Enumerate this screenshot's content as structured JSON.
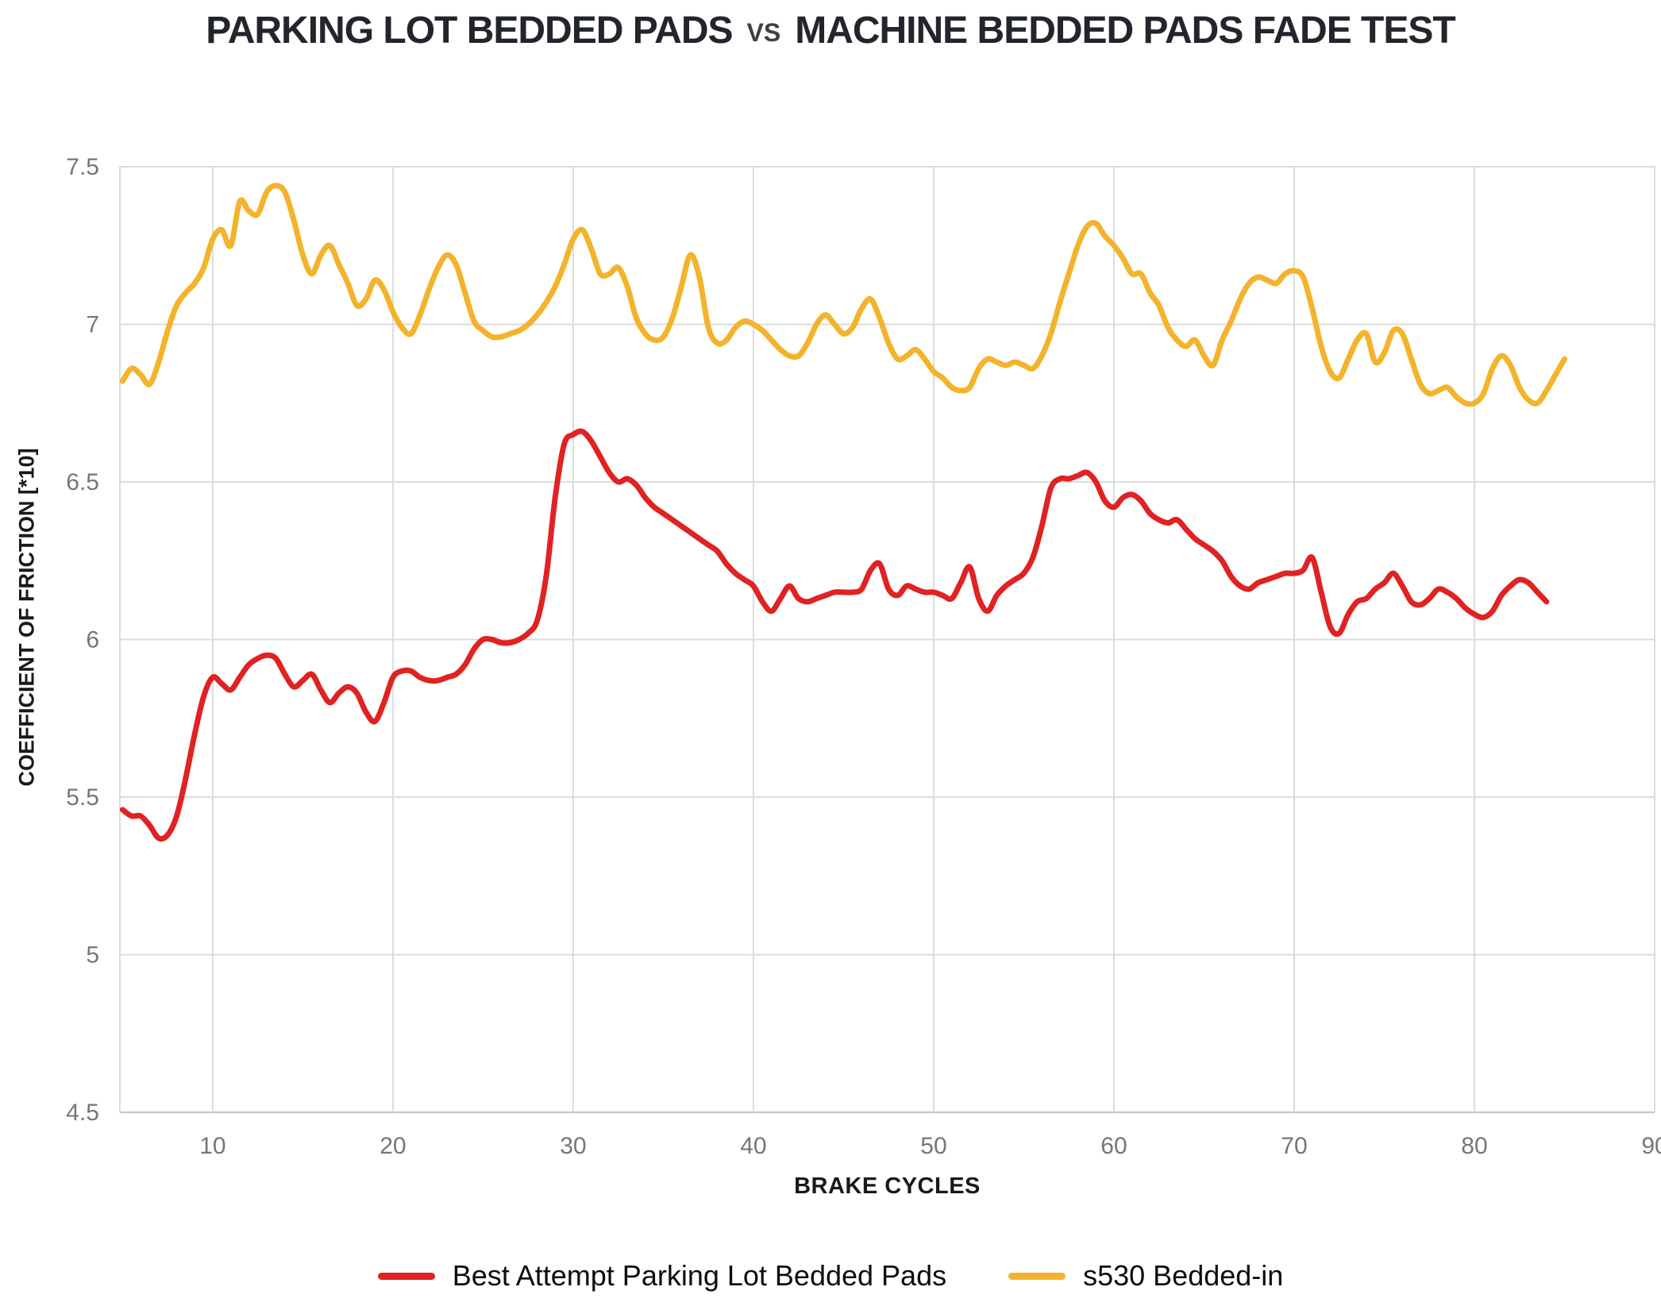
{
  "title": {
    "part1": "PARKING LOT BEDDED PADS",
    "separator": "VS",
    "part2": "MACHINE BEDDED PADS FADE TEST"
  },
  "colors": {
    "parking_lot_line": "#e02222",
    "s530_line": "#f3b32b",
    "gridline": "#dcdcdc",
    "axis_line": "#c9c9c9",
    "tick_text": "#767676",
    "title_text": "#22262c",
    "axis_title_text": "#17191d",
    "legend_text": "#0d0d0d"
  },
  "chart_data": {
    "type": "line",
    "title": "PARKING LOT BEDDED PADS VS MACHINE BEDDED PADS FADE TEST",
    "xlabel": "BRAKE CYCLES",
    "ylabel": "COEFFICIENT OF FRICTION [*10]",
    "grid": true,
    "legend_position": "bottom",
    "x_axis": {
      "min": 4.85,
      "max": 90,
      "ticks": [
        10,
        20,
        30,
        40,
        50,
        60,
        70,
        80,
        90
      ]
    },
    "y_axis": {
      "min": 4.5,
      "max": 7.5,
      "ticks": [
        {
          "v": 7.5,
          "label": "7.5"
        },
        {
          "v": 7.0,
          "label": "7"
        },
        {
          "v": 6.5,
          "label": "6.5"
        },
        {
          "v": 6.0,
          "label": "6"
        },
        {
          "v": 5.5,
          "label": "5.5"
        },
        {
          "v": 5.0,
          "label": "5"
        },
        {
          "v": 4.5,
          "label": "4.5"
        }
      ]
    },
    "series": [
      {
        "name": "Best Attempt Parking Lot Bedded Pads",
        "color": "#e02222",
        "x_start": 5,
        "x_step": 0.5,
        "values": [
          5.46,
          5.44,
          5.44,
          5.41,
          5.37,
          5.38,
          5.44,
          5.56,
          5.7,
          5.82,
          5.88,
          5.86,
          5.84,
          5.88,
          5.92,
          5.94,
          5.95,
          5.94,
          5.89,
          5.85,
          5.87,
          5.89,
          5.84,
          5.8,
          5.83,
          5.85,
          5.83,
          5.77,
          5.74,
          5.8,
          5.88,
          5.9,
          5.9,
          5.88,
          5.87,
          5.87,
          5.88,
          5.89,
          5.92,
          5.97,
          6.0,
          6.0,
          5.99,
          5.99,
          6.0,
          6.02,
          6.06,
          6.2,
          6.45,
          6.62,
          6.65,
          6.66,
          6.63,
          6.58,
          6.53,
          6.5,
          6.51,
          6.49,
          6.45,
          6.42,
          6.4,
          6.38,
          6.36,
          6.34,
          6.32,
          6.3,
          6.28,
          6.24,
          6.21,
          6.19,
          6.17,
          6.12,
          6.09,
          6.13,
          6.17,
          6.13,
          6.12,
          6.13,
          6.14,
          6.15,
          6.15,
          6.15,
          6.16,
          6.22,
          6.24,
          6.16,
          6.14,
          6.17,
          6.16,
          6.15,
          6.15,
          6.14,
          6.13,
          6.18,
          6.23,
          6.13,
          6.09,
          6.14,
          6.17,
          6.19,
          6.21,
          6.26,
          6.36,
          6.48,
          6.51,
          6.51,
          6.52,
          6.53,
          6.5,
          6.44,
          6.42,
          6.45,
          6.46,
          6.44,
          6.4,
          6.38,
          6.37,
          6.38,
          6.35,
          6.32,
          6.3,
          6.28,
          6.25,
          6.2,
          6.17,
          6.16,
          6.18,
          6.19,
          6.2,
          6.21,
          6.21,
          6.22,
          6.26,
          6.15,
          6.04,
          6.02,
          6.08,
          6.12,
          6.13,
          6.16,
          6.18,
          6.21,
          6.17,
          6.12,
          6.11,
          6.13,
          6.16,
          6.15,
          6.13,
          6.1,
          6.08,
          6.07,
          6.09,
          6.14,
          6.17,
          6.19,
          6.18,
          6.15,
          6.12
        ]
      },
      {
        "name": "s530 Bedded-in",
        "color": "#f3b32b",
        "x_start": 5,
        "x_step": 0.5,
        "values": [
          6.82,
          6.86,
          6.84,
          6.81,
          6.88,
          6.98,
          7.06,
          7.1,
          7.13,
          7.18,
          7.27,
          7.3,
          7.25,
          7.39,
          7.36,
          7.35,
          7.42,
          7.44,
          7.42,
          7.33,
          7.22,
          7.16,
          7.22,
          7.25,
          7.19,
          7.13,
          7.06,
          7.08,
          7.14,
          7.11,
          7.04,
          6.99,
          6.97,
          7.03,
          7.11,
          7.18,
          7.22,
          7.19,
          7.1,
          7.01,
          6.98,
          6.96,
          6.96,
          6.97,
          6.98,
          7.0,
          7.03,
          7.07,
          7.12,
          7.19,
          7.27,
          7.3,
          7.24,
          7.16,
          7.16,
          7.18,
          7.12,
          7.02,
          6.97,
          6.95,
          6.96,
          7.02,
          7.12,
          7.22,
          7.15,
          6.99,
          6.94,
          6.95,
          6.99,
          7.01,
          7.0,
          6.98,
          6.95,
          6.92,
          6.9,
          6.9,
          6.94,
          7.0,
          7.03,
          7.0,
          6.97,
          6.99,
          7.05,
          7.08,
          7.02,
          6.94,
          6.89,
          6.9,
          6.92,
          6.89,
          6.85,
          6.83,
          6.8,
          6.79,
          6.8,
          6.86,
          6.89,
          6.88,
          6.87,
          6.88,
          6.87,
          6.86,
          6.9,
          6.97,
          7.07,
          7.16,
          7.25,
          7.31,
          7.32,
          7.28,
          7.25,
          7.21,
          7.16,
          7.16,
          7.1,
          7.06,
          6.99,
          6.95,
          6.93,
          6.95,
          6.9,
          6.87,
          6.95,
          7.01,
          7.08,
          7.13,
          7.15,
          7.14,
          7.13,
          7.16,
          7.17,
          7.15,
          7.05,
          6.93,
          6.85,
          6.83,
          6.89,
          6.95,
          6.97,
          6.88,
          6.91,
          6.98,
          6.97,
          6.89,
          6.81,
          6.78,
          6.79,
          6.8,
          6.77,
          6.75,
          6.75,
          6.78,
          6.86,
          6.9,
          6.87,
          6.8,
          6.76,
          6.75,
          6.79,
          6.84,
          6.89
        ]
      }
    ]
  }
}
